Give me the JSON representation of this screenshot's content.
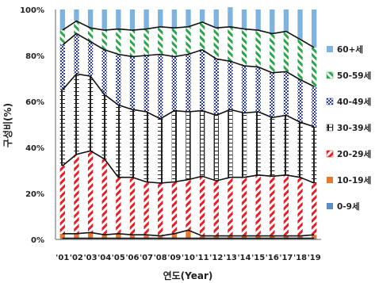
{
  "chart_data": {
    "type": "bar",
    "stacked": true,
    "title": "",
    "xlabel": "연도(Year)",
    "ylabel": "구성비(%)",
    "ylim": [
      0,
      100
    ],
    "y_ticks": [
      "0%",
      "20%",
      "40%",
      "60%",
      "80%",
      "100%"
    ],
    "grid": false,
    "legend_position": "right",
    "categories": [
      "'01",
      "'02",
      "'03",
      "'04",
      "'05",
      "'06",
      "'07",
      "'08",
      "'09",
      "'10",
      "'11",
      "'12",
      "'13",
      "'14",
      "'15",
      "'16",
      "'17",
      "'18",
      "'19"
    ],
    "series": [
      {
        "name": "0-9세",
        "color": "#5b8fc4",
        "pattern": "solid",
        "values": [
          0.5,
          0.5,
          0.5,
          0.5,
          0.5,
          0.5,
          0.5,
          0.5,
          0.5,
          0.5,
          0.5,
          0.5,
          0.5,
          0.5,
          0.5,
          0.5,
          0.5,
          0.5,
          0.5
        ]
      },
      {
        "name": "10-19세",
        "color": "#e8782e",
        "pattern": "solid",
        "values": [
          2.0,
          2.0,
          2.5,
          1.5,
          2.0,
          1.5,
          1.5,
          1.0,
          2.0,
          3.5,
          1.0,
          1.0,
          1.0,
          1.0,
          1.0,
          1.0,
          1.0,
          1.0,
          1.5
        ]
      },
      {
        "name": "20-29세",
        "color": "#e81f27",
        "pattern": "diagonal",
        "values": [
          29.5,
          34.5,
          35.5,
          33.0,
          24.5,
          25.0,
          23.0,
          23.0,
          22.5,
          22.0,
          26.0,
          24.0,
          25.5,
          25.5,
          26.5,
          26.0,
          26.5,
          25.5,
          22.5
        ]
      },
      {
        "name": "30-39세",
        "color": "#222222",
        "pattern": "brick",
        "values": [
          33.0,
          35.0,
          32.5,
          28.0,
          31.5,
          29.5,
          30.5,
          28.0,
          31.0,
          29.5,
          28.5,
          28.5,
          29.5,
          28.0,
          27.5,
          25.5,
          26.0,
          24.0,
          24.5
        ]
      },
      {
        "name": "40-49세",
        "color": "#2e3f9e",
        "pattern": "dots",
        "values": [
          19.5,
          17.5,
          15.0,
          19.5,
          22.0,
          23.0,
          24.5,
          28.0,
          23.5,
          25.0,
          26.5,
          24.5,
          21.0,
          20.5,
          19.5,
          19.5,
          19.0,
          18.5,
          17.5
        ]
      },
      {
        "name": "50-59세",
        "color": "#2aa64a",
        "pattern": "diagonal",
        "values": [
          6.5,
          5.5,
          6.0,
          8.5,
          11.0,
          11.5,
          11.5,
          12.0,
          12.5,
          12.0,
          12.0,
          13.5,
          15.0,
          16.0,
          16.0,
          17.0,
          17.5,
          17.5,
          17.0
        ]
      },
      {
        "name": "60+세",
        "color": "#7fb3df",
        "pattern": "solid",
        "values": [
          9.0,
          5.0,
          8.0,
          9.0,
          8.5,
          9.0,
          8.5,
          7.5,
          8.0,
          7.5,
          5.5,
          8.0,
          8.5,
          8.5,
          9.0,
          10.5,
          9.5,
          13.0,
          16.5
        ]
      }
    ]
  }
}
